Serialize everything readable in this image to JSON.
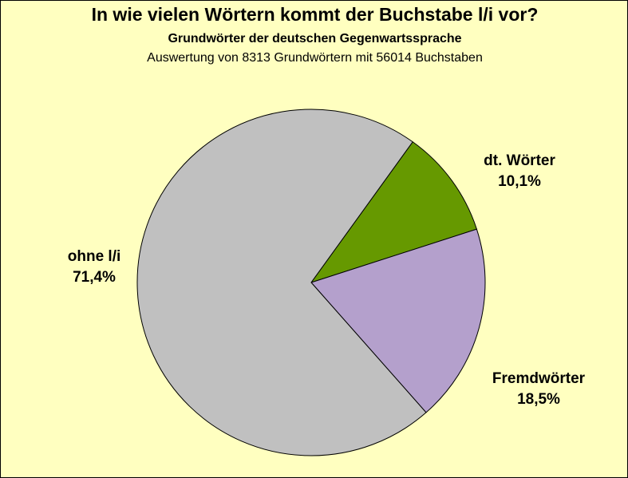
{
  "chart_data": {
    "type": "pie",
    "title": "In wie vielen Wörtern kommt der Buchstabe l/i vor?",
    "subtitle": "Grundwörter der deutschen Gegenwartssprache",
    "note": "Auswertung von 8313 Grundwörtern mit 56014 Buchstaben",
    "slices": [
      {
        "name": "dt. Wörter",
        "value": 10.1,
        "label": "10,1%",
        "color": "#669900"
      },
      {
        "name": "Fremdwörter",
        "value": 18.5,
        "label": "18,5%",
        "color": "#b4a0cc"
      },
      {
        "name": "ohne l/i",
        "value": 71.4,
        "label": "71,4%",
        "color": "#c0c0c0"
      }
    ]
  }
}
